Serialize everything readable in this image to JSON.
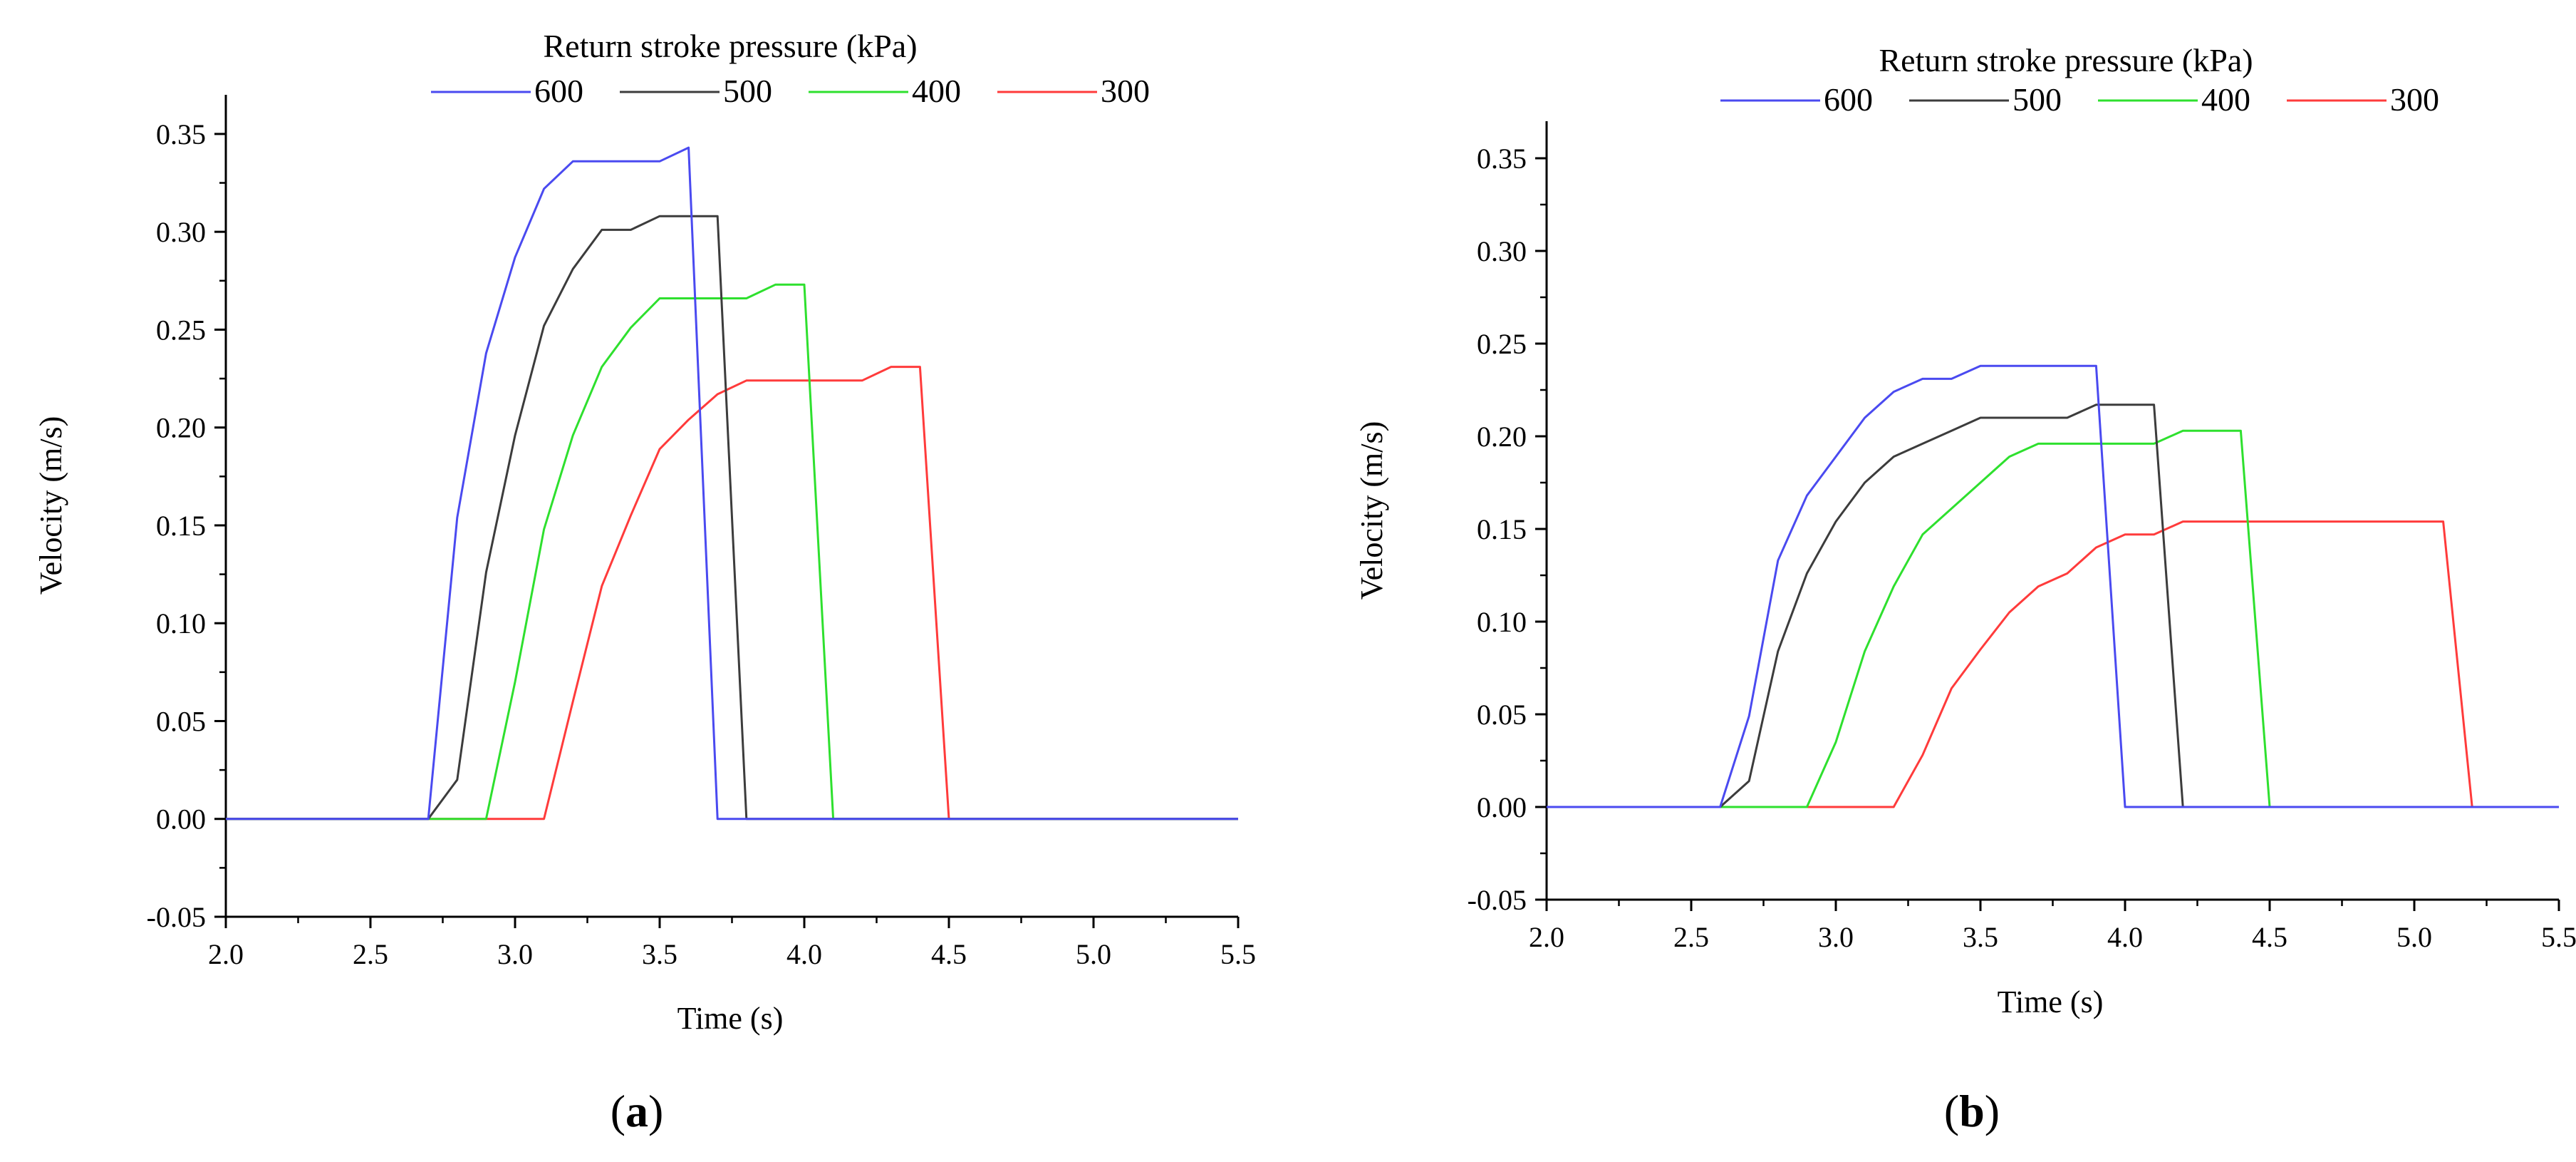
{
  "chart_data": [
    {
      "type": "line",
      "panel_label": "(a)",
      "panel_letter": "a",
      "title": "Return stroke pressure (kPa)",
      "xlabel": "Time (s)",
      "ylabel": "Velocity (m/s)",
      "xlim": [
        2.0,
        5.5
      ],
      "ylim": [
        -0.05,
        0.37
      ],
      "xticks": [
        2.0,
        2.5,
        3.0,
        3.5,
        4.0,
        4.5,
        5.0,
        5.5
      ],
      "xtick_labels": [
        "2.0",
        "2.5",
        "3.0",
        "3.5",
        "4.0",
        "4.5",
        "5.0",
        "5.5"
      ],
      "yticks": [
        -0.05,
        0.0,
        0.05,
        0.1,
        0.15,
        0.2,
        0.25,
        0.3,
        0.35
      ],
      "ytick_labels": [
        "-0.05",
        "0.00",
        "0.05",
        "0.10",
        "0.15",
        "0.20",
        "0.25",
        "0.30",
        "0.35"
      ],
      "legend_position": "top",
      "series": [
        {
          "name": "300",
          "color": "#ff3b3b",
          "x": [
            2.0,
            3.1,
            3.2,
            3.3,
            3.4,
            3.5,
            3.6,
            3.7,
            3.8,
            3.9,
            4.0,
            4.1,
            4.2,
            4.3,
            4.4,
            4.5,
            5.5
          ],
          "y": [
            0.0,
            0.0,
            0.06,
            0.119,
            0.155,
            0.189,
            0.204,
            0.217,
            0.224,
            0.224,
            0.224,
            0.224,
            0.224,
            0.231,
            0.231,
            0.0,
            0.0
          ]
        },
        {
          "name": "400",
          "color": "#2ee02e",
          "x": [
            2.0,
            2.9,
            3.0,
            3.1,
            3.2,
            3.3,
            3.4,
            3.5,
            3.6,
            3.7,
            3.8,
            3.9,
            4.0,
            4.1,
            5.5
          ],
          "y": [
            0.0,
            0.0,
            0.07,
            0.148,
            0.196,
            0.231,
            0.251,
            0.266,
            0.266,
            0.266,
            0.266,
            0.273,
            0.273,
            0.0,
            0.0
          ]
        },
        {
          "name": "500",
          "color": "#3c3c3c",
          "x": [
            2.0,
            2.7,
            2.8,
            2.9,
            3.0,
            3.1,
            3.2,
            3.3,
            3.4,
            3.5,
            3.6,
            3.7,
            3.8,
            5.5
          ],
          "y": [
            0.0,
            0.0,
            0.02,
            0.126,
            0.196,
            0.252,
            0.281,
            0.301,
            0.301,
            0.308,
            0.308,
            0.308,
            0.0,
            0.0
          ]
        },
        {
          "name": "600",
          "color": "#4a4af0",
          "x": [
            2.0,
            2.7,
            2.8,
            2.9,
            3.0,
            3.1,
            3.2,
            3.3,
            3.4,
            3.5,
            3.6,
            3.7,
            5.5
          ],
          "y": [
            0.0,
            0.0,
            0.154,
            0.238,
            0.287,
            0.322,
            0.336,
            0.336,
            0.336,
            0.336,
            0.343,
            0.0,
            0.0
          ]
        }
      ],
      "legend_order": [
        "600",
        "500",
        "400",
        "300"
      ]
    },
    {
      "type": "line",
      "panel_label": "(b)",
      "panel_letter": "b",
      "title": "Return stroke pressure (kPa)",
      "xlabel": "Time (s)",
      "ylabel": "Velocity (m/s)",
      "xlim": [
        2.0,
        5.5
      ],
      "ylim": [
        -0.05,
        0.37
      ],
      "xticks": [
        2.0,
        2.5,
        3.0,
        3.5,
        4.0,
        4.5,
        5.0,
        5.5
      ],
      "xtick_labels": [
        "2.0",
        "2.5",
        "3.0",
        "3.5",
        "4.0",
        "4.5",
        "5.0",
        "5.5"
      ],
      "yticks": [
        -0.05,
        0.0,
        0.05,
        0.1,
        0.15,
        0.2,
        0.25,
        0.3,
        0.35
      ],
      "ytick_labels": [
        "-0.05",
        "0.00",
        "0.05",
        "0.10",
        "0.15",
        "0.20",
        "0.25",
        "0.30",
        "0.35"
      ],
      "legend_position": "top",
      "series": [
        {
          "name": "300",
          "color": "#ff3b3b",
          "x": [
            2.0,
            3.2,
            3.3,
            3.4,
            3.5,
            3.6,
            3.7,
            3.8,
            3.9,
            4.0,
            4.1,
            4.2,
            4.3,
            4.4,
            4.5,
            4.6,
            4.7,
            4.8,
            4.9,
            5.0,
            5.1,
            5.2,
            5.5
          ],
          "y": [
            0.0,
            0.0,
            0.028,
            0.064,
            0.085,
            0.105,
            0.119,
            0.126,
            0.14,
            0.147,
            0.147,
            0.154,
            0.154,
            0.154,
            0.154,
            0.154,
            0.154,
            0.154,
            0.154,
            0.154,
            0.154,
            0.0,
            0.0
          ]
        },
        {
          "name": "400",
          "color": "#2ee02e",
          "x": [
            2.0,
            2.9,
            3.0,
            3.1,
            3.2,
            3.3,
            3.4,
            3.5,
            3.6,
            3.7,
            3.8,
            3.9,
            4.0,
            4.1,
            4.2,
            4.3,
            4.4,
            4.5,
            5.5
          ],
          "y": [
            0.0,
            0.0,
            0.035,
            0.084,
            0.119,
            0.147,
            0.161,
            0.175,
            0.189,
            0.196,
            0.196,
            0.196,
            0.196,
            0.196,
            0.203,
            0.203,
            0.203,
            0.0,
            0.0
          ]
        },
        {
          "name": "500",
          "color": "#3c3c3c",
          "x": [
            2.0,
            2.6,
            2.7,
            2.8,
            2.9,
            3.0,
            3.1,
            3.2,
            3.3,
            3.4,
            3.5,
            3.6,
            3.7,
            3.8,
            3.9,
            4.0,
            4.1,
            4.2,
            5.5
          ],
          "y": [
            0.0,
            0.0,
            0.014,
            0.084,
            0.126,
            0.154,
            0.175,
            0.189,
            0.196,
            0.203,
            0.21,
            0.21,
            0.21,
            0.21,
            0.217,
            0.217,
            0.217,
            0.0,
            0.0
          ]
        },
        {
          "name": "600",
          "color": "#4a4af0",
          "x": [
            2.0,
            2.6,
            2.7,
            2.8,
            2.9,
            3.0,
            3.1,
            3.2,
            3.3,
            3.4,
            3.5,
            3.6,
            3.7,
            3.8,
            3.9,
            4.0,
            5.5
          ],
          "y": [
            0.0,
            0.0,
            0.049,
            0.133,
            0.168,
            0.189,
            0.21,
            0.224,
            0.231,
            0.231,
            0.238,
            0.238,
            0.238,
            0.238,
            0.238,
            0.0,
            0.0
          ]
        }
      ],
      "legend_order": [
        "600",
        "500",
        "400",
        "300"
      ]
    }
  ]
}
